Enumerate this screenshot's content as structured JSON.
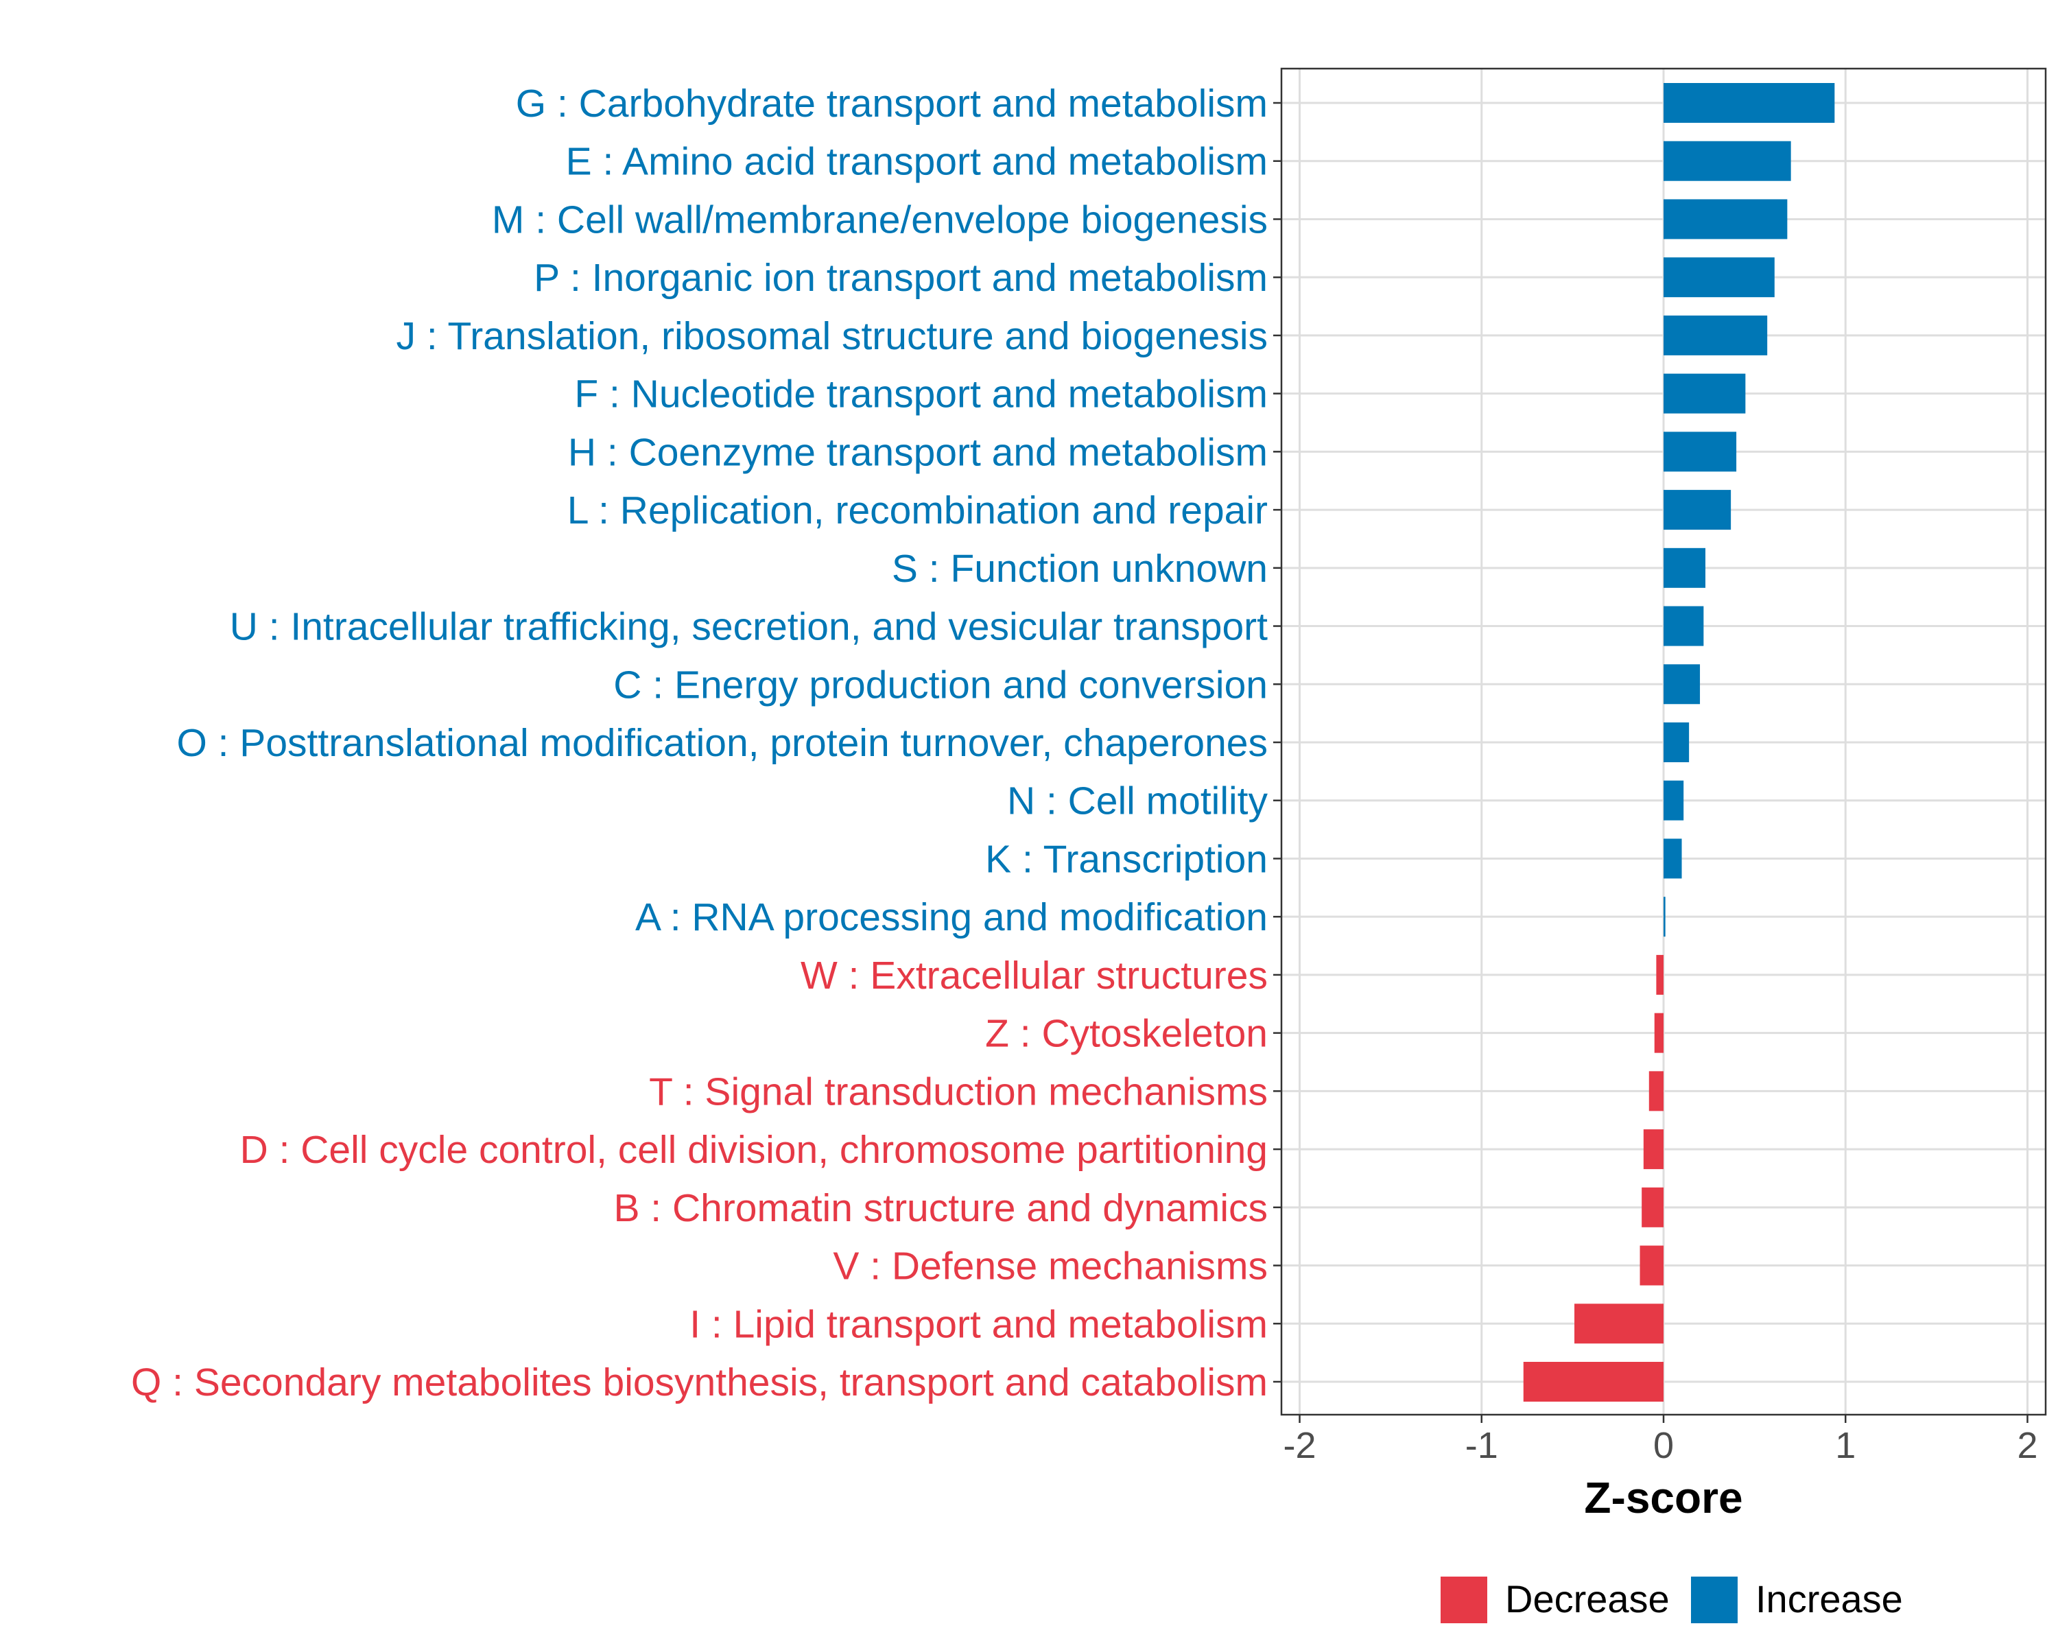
{
  "chart_data": {
    "type": "bar",
    "orientation": "horizontal",
    "xlabel": "Z-score",
    "ylabel": "",
    "xlim": [
      -2.1,
      2.1
    ],
    "x_ticks": [
      -2,
      -1,
      0,
      1,
      2
    ],
    "x_tick_labels": [
      "-2",
      "-1",
      "0",
      "1",
      "2"
    ],
    "grid": true,
    "legend_position": "bottom",
    "legend": [
      {
        "label": "Decrease",
        "color": "#E63946"
      },
      {
        "label": "Increase",
        "color": "#0077B6"
      }
    ],
    "categories": [
      "G : Carbohydrate transport and metabolism",
      "E : Amino acid transport and metabolism",
      "M : Cell wall/membrane/envelope biogenesis",
      "P : Inorganic ion transport and metabolism",
      "J : Translation, ribosomal structure and biogenesis",
      "F : Nucleotide transport and metabolism",
      "H : Coenzyme transport and metabolism",
      "L : Replication, recombination and repair",
      "S : Function unknown",
      "U : Intracellular trafficking, secretion, and vesicular transport",
      "C : Energy production and conversion",
      "O : Posttranslational modification, protein turnover, chaperones",
      "N : Cell motility",
      "K : Transcription",
      "A : RNA processing and modification",
      "W : Extracellular structures",
      "Z : Cytoskeleton",
      "T : Signal transduction mechanisms",
      "D : Cell cycle control, cell division, chromosome partitioning",
      "B : Chromatin structure and dynamics",
      "V : Defense mechanisms",
      "I : Lipid transport and metabolism",
      "Q : Secondary metabolites biosynthesis, transport and catabolism"
    ],
    "values": [
      0.94,
      0.7,
      0.68,
      0.61,
      0.57,
      0.45,
      0.4,
      0.37,
      0.23,
      0.22,
      0.2,
      0.14,
      0.11,
      0.1,
      0.01,
      -0.04,
      -0.05,
      -0.08,
      -0.11,
      -0.12,
      -0.13,
      -0.49,
      -0.77
    ],
    "groups": [
      "Increase",
      "Increase",
      "Increase",
      "Increase",
      "Increase",
      "Increase",
      "Increase",
      "Increase",
      "Increase",
      "Increase",
      "Increase",
      "Increase",
      "Increase",
      "Increase",
      "Increase",
      "Decrease",
      "Decrease",
      "Decrease",
      "Decrease",
      "Decrease",
      "Decrease",
      "Decrease",
      "Decrease"
    ]
  }
}
